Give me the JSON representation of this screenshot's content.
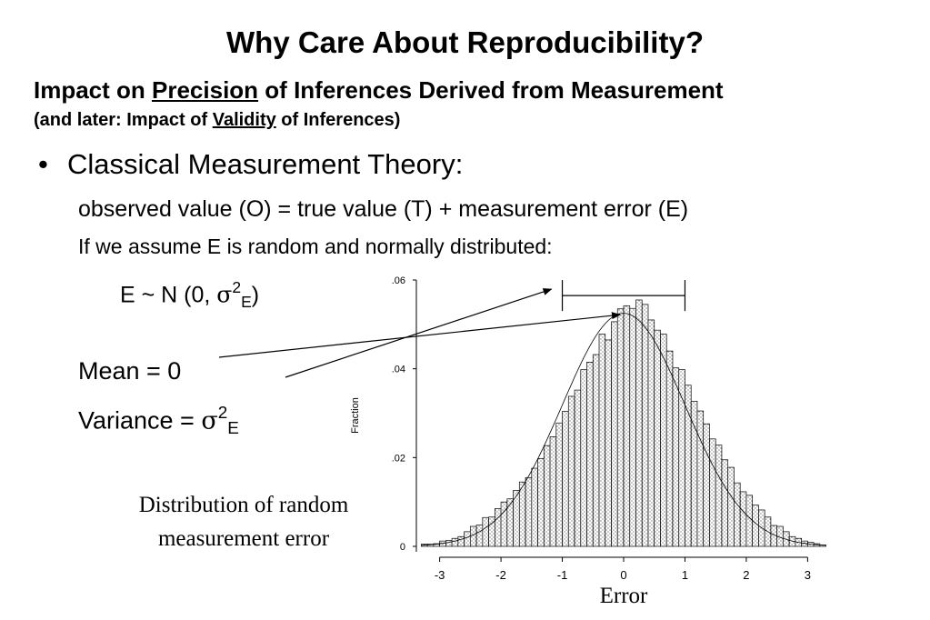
{
  "slide": {
    "title": "Why Care About Reproducibility?",
    "subtitle_prefix": "Impact on ",
    "subtitle_emph": "Precision",
    "subtitle_suffix": " of Inferences Derived from Measurement",
    "note_prefix": "(and later: Impact of ",
    "note_emph": "Validity",
    "note_suffix": " of Inferences)",
    "bullet_marker": "•",
    "bullet": "Classical Measurement Theory:",
    "equation": "observed value (O) = true value (T) + measurement error (E)",
    "assumption": "If we assume E is random and normally distributed:",
    "dist_prefix": "E ~ N (0, ",
    "sigma": "σ",
    "sq": "2",
    "e": "E",
    "close_paren": ")",
    "mean": "Mean = 0",
    "variance_prefix": "Variance = ",
    "caption": "Distribution of random measurement error"
  },
  "colors": {
    "text": "#000000",
    "background": "#ffffff",
    "bars": "#000000"
  },
  "chart_data": {
    "type": "bar",
    "xlabel": "Error",
    "ylabel": "Fraction",
    "x_ticks": [
      "-3",
      "-2",
      "-1",
      "0",
      "1",
      "2",
      "3"
    ],
    "y_ticks": [
      "0",
      ".02",
      ".04",
      ".06"
    ],
    "ylim": [
      0,
      0.06
    ],
    "xlim": [
      -3.35,
      3.35
    ],
    "bin_width": 0.1,
    "x": [
      -3.25,
      -3.15,
      -3.05,
      -2.95,
      -2.85,
      -2.75,
      -2.65,
      -2.55,
      -2.45,
      -2.35,
      -2.25,
      -2.15,
      -2.05,
      -1.95,
      -1.85,
      -1.75,
      -1.65,
      -1.55,
      -1.45,
      -1.35,
      -1.25,
      -1.15,
      -1.05,
      -0.95,
      -0.85,
      -0.75,
      -0.65,
      -0.55,
      -0.45,
      -0.35,
      -0.25,
      -0.15,
      -0.05,
      0.05,
      0.15,
      0.25,
      0.35,
      0.45,
      0.55,
      0.65,
      0.75,
      0.85,
      0.95,
      1.05,
      1.15,
      1.25,
      1.35,
      1.45,
      1.55,
      1.65,
      1.75,
      1.85,
      1.95,
      2.05,
      2.15,
      2.25,
      2.35,
      2.45,
      2.55,
      2.65,
      2.75,
      2.85,
      2.95,
      3.05,
      3.15,
      3.25
    ],
    "values": [
      0.0005,
      0.0005,
      0.0006,
      0.0012,
      0.0013,
      0.0018,
      0.0022,
      0.0033,
      0.0045,
      0.0048,
      0.0065,
      0.0066,
      0.0085,
      0.01,
      0.0107,
      0.0126,
      0.0145,
      0.0155,
      0.0176,
      0.0198,
      0.0227,
      0.0247,
      0.0278,
      0.0304,
      0.0338,
      0.0352,
      0.0398,
      0.0415,
      0.0432,
      0.0478,
      0.0465,
      0.0506,
      0.0535,
      0.0542,
      0.0536,
      0.0555,
      0.0545,
      0.051,
      0.0487,
      0.0478,
      0.044,
      0.0402,
      0.0398,
      0.0363,
      0.0327,
      0.0305,
      0.0276,
      0.0242,
      0.0228,
      0.0195,
      0.0178,
      0.0143,
      0.0123,
      0.0115,
      0.0093,
      0.0082,
      0.0066,
      0.0047,
      0.0045,
      0.0033,
      0.0022,
      0.0018,
      0.0012,
      0.0009,
      0.0006,
      0.0003
    ],
    "normal_curve": {
      "mean": 0,
      "sd": 1,
      "scale": 0.0525
    },
    "annotations": {
      "bracket_x": [
        -1.0,
        1.0
      ],
      "bracket_y": 0.0565,
      "peak_point": [
        0.0,
        0.053
      ]
    }
  }
}
